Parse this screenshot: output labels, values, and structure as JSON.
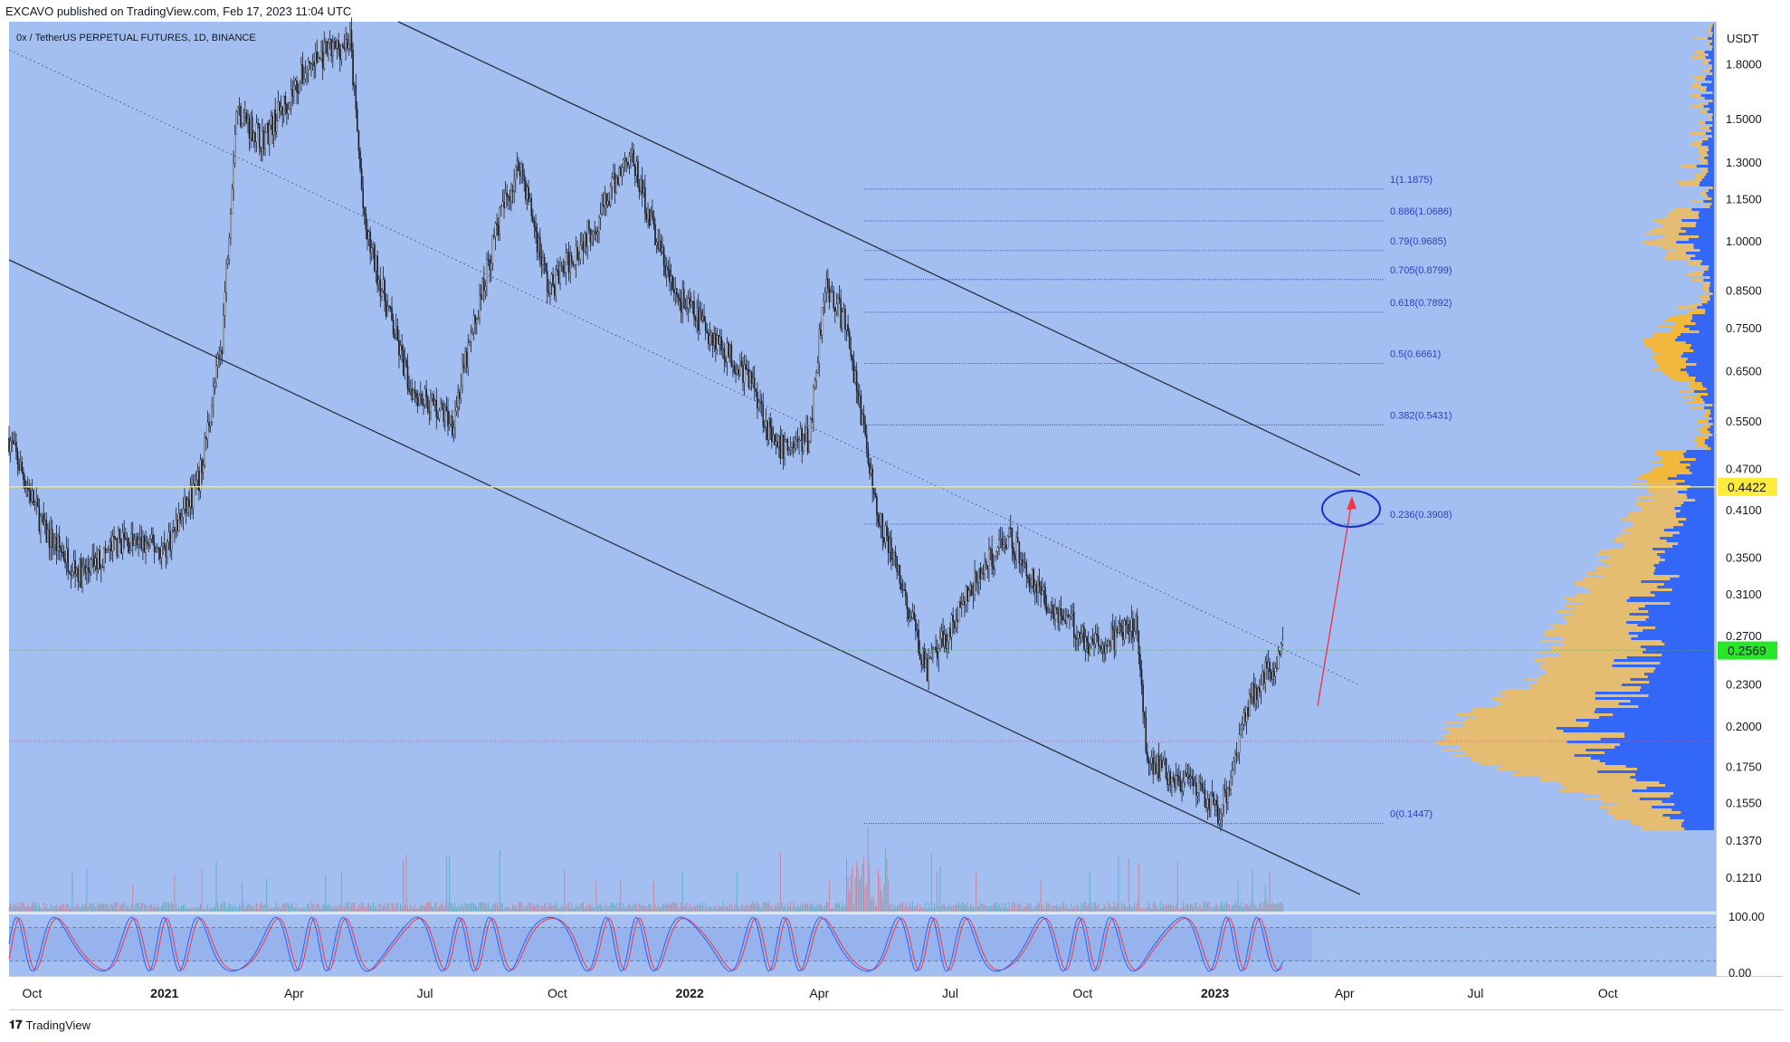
{
  "header": {
    "publisher_line": "EXCAVO published on TradingView.com, Feb 17, 2023 11:04 UTC"
  },
  "chart_title": "0x / TetherUS PERPETUAL FUTURES, 1D, BINANCE",
  "price_axis": {
    "unit": "USDT",
    "ticks": [
      "1.8000",
      "1.5000",
      "1.3000",
      "1.1500",
      "1.0000",
      "0.8500",
      "0.7500",
      "0.6500",
      "0.5500",
      "0.4700",
      "0.4100",
      "0.3500",
      "0.3100",
      "0.2700",
      "0.2300",
      "0.2000",
      "0.1750",
      "0.1550",
      "0.1370",
      "0.1210"
    ],
    "current_price_label": "0.2569",
    "level_label": "0.4422"
  },
  "oscillator_axis": {
    "ticks": [
      "100.00",
      "0.00"
    ]
  },
  "time_axis": {
    "labels": [
      {
        "text": "Oct",
        "bold": false
      },
      {
        "text": "2021",
        "bold": true
      },
      {
        "text": "Apr",
        "bold": false
      },
      {
        "text": "Jul",
        "bold": false
      },
      {
        "text": "Oct",
        "bold": false
      },
      {
        "text": "2022",
        "bold": true
      },
      {
        "text": "Apr",
        "bold": false
      },
      {
        "text": "Jul",
        "bold": false
      },
      {
        "text": "Oct",
        "bold": false
      },
      {
        "text": "2023",
        "bold": true
      },
      {
        "text": "Apr",
        "bold": false
      },
      {
        "text": "Jul",
        "bold": false
      },
      {
        "text": "Oct",
        "bold": false
      }
    ]
  },
  "fib_levels": [
    {
      "label": "1(1.1875)",
      "price": 1.1875
    },
    {
      "label": "0.886(1.0686)",
      "price": 1.0686
    },
    {
      "label": "0.79(0.9685)",
      "price": 0.9685
    },
    {
      "label": "0.705(0.8799)",
      "price": 0.8799
    },
    {
      "label": "0.618(0.7892)",
      "price": 0.7892
    },
    {
      "label": "0.5(0.6661)",
      "price": 0.6661
    },
    {
      "label": "0.382(0.5431)",
      "price": 0.5431
    },
    {
      "label": "0.236(0.3908)",
      "price": 0.3908
    },
    {
      "label": "0(0.1447)",
      "price": 0.1447
    }
  ],
  "footer": {
    "logo_text": "TradingView"
  },
  "colors": {
    "chart_bg": "#a3bff2",
    "candle": "#1c1f2a",
    "fib_line": "#2f3fa8",
    "fib_text": "#2b3ec2",
    "channel_line": "#2a2e39",
    "level_line": "#ffeb3b",
    "current_price_bg": "#27e827",
    "level_bg": "#ffeb3b",
    "volume_profile_up": "#2962ff",
    "volume_profile_down": "#f7b733",
    "stoch_k": "#2962ff",
    "stoch_d": "#f23645",
    "arrow": "#f23645",
    "circle": "#1432c8"
  },
  "chart_data": {
    "type": "candlestick",
    "title": "0x / TetherUS PERPETUAL FUTURES, 1D, BINANCE",
    "y_scale": "log",
    "y_unit": "USDT",
    "ylim": [
      0.11,
      2.0
    ],
    "x_range": [
      "2020-09-15",
      "2023-12-15"
    ],
    "approx_close_path": [
      {
        "date": "2020-09-15",
        "close": 0.52
      },
      {
        "date": "2020-10-10",
        "close": 0.38
      },
      {
        "date": "2020-11-05",
        "close": 0.33
      },
      {
        "date": "2020-12-01",
        "close": 0.37
      },
      {
        "date": "2021-01-01",
        "close": 0.36
      },
      {
        "date": "2021-01-25",
        "close": 0.45
      },
      {
        "date": "2021-02-10",
        "close": 0.72
      },
      {
        "date": "2021-02-20",
        "close": 1.55
      },
      {
        "date": "2021-03-10",
        "close": 1.4
      },
      {
        "date": "2021-04-12",
        "close": 1.8
      },
      {
        "date": "2021-05-10",
        "close": 1.95
      },
      {
        "date": "2021-05-20",
        "close": 1.05
      },
      {
        "date": "2021-06-20",
        "close": 0.62
      },
      {
        "date": "2021-07-20",
        "close": 0.55
      },
      {
        "date": "2021-08-20",
        "close": 1.05
      },
      {
        "date": "2021-09-05",
        "close": 1.3
      },
      {
        "date": "2021-09-25",
        "close": 0.85
      },
      {
        "date": "2021-11-01",
        "close": 1.1
      },
      {
        "date": "2021-11-20",
        "close": 1.35
      },
      {
        "date": "2021-12-20",
        "close": 0.85
      },
      {
        "date": "2022-01-20",
        "close": 0.72
      },
      {
        "date": "2022-02-15",
        "close": 0.62
      },
      {
        "date": "2022-03-01",
        "close": 0.5
      },
      {
        "date": "2022-03-25",
        "close": 0.52
      },
      {
        "date": "2022-04-05",
        "close": 0.88
      },
      {
        "date": "2022-04-20",
        "close": 0.75
      },
      {
        "date": "2022-05-10",
        "close": 0.42
      },
      {
        "date": "2022-06-15",
        "close": 0.24
      },
      {
        "date": "2022-07-10",
        "close": 0.3
      },
      {
        "date": "2022-08-10",
        "close": 0.38
      },
      {
        "date": "2022-09-01",
        "close": 0.31
      },
      {
        "date": "2022-10-10",
        "close": 0.26
      },
      {
        "date": "2022-11-08",
        "close": 0.28
      },
      {
        "date": "2022-11-15",
        "close": 0.18
      },
      {
        "date": "2022-12-20",
        "close": 0.16
      },
      {
        "date": "2023-01-05",
        "close": 0.15
      },
      {
        "date": "2023-01-25",
        "close": 0.22
      },
      {
        "date": "2023-02-17",
        "close": 0.2569
      }
    ],
    "annotations": {
      "current_price": 0.2569,
      "horizontal_level": 0.4422,
      "dotted_red_level": 0.19,
      "fibonacci": {
        "high": 1.1875,
        "low": 0.1447
      }
    }
  }
}
